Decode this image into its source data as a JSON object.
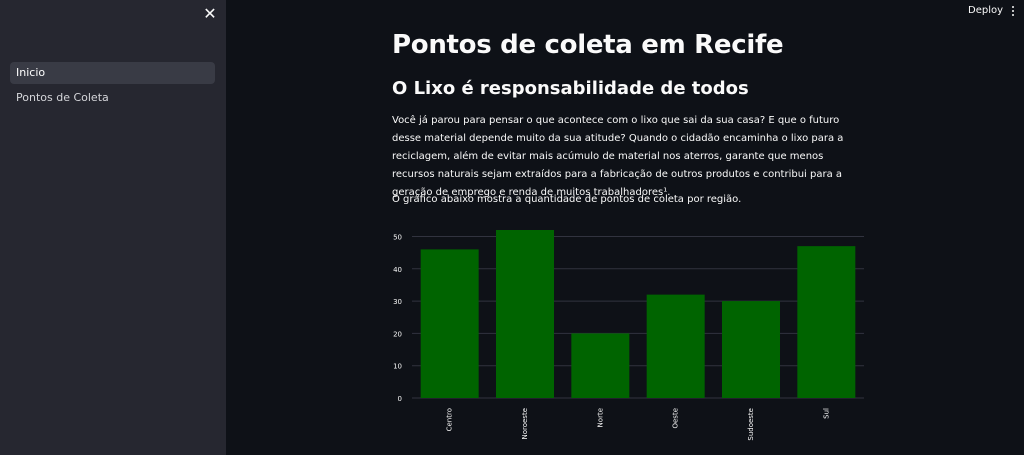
{
  "sidebar": {
    "items": [
      {
        "label": "Inicio",
        "active": true
      },
      {
        "label": "Pontos de Coleta",
        "active": false
      }
    ]
  },
  "header": {
    "deploy_label": "Deploy"
  },
  "main": {
    "title": "Pontos de coleta em Recife",
    "subtitle": "O Lixo é responsabilidade de todos",
    "paragraph": "Você já parou para pensar o que acontece com o lixo que sai da sua casa? E que o futuro desse material depende muito da sua atitude? Quando o cidadão encaminha o lixo para a reciclagem, além de evitar mais acúmulo de material nos aterros, garante que menos recursos naturais sejam extraídos para a fabricação de outros produtos e contribui para a geração de emprego e renda de muitos trabalhadores¹.",
    "chart_intro": "O gráfico abaixo mostra a quantidade de pontos de coleta por região."
  },
  "colors": {
    "background": "#0e1117",
    "sidebar": "#262730",
    "bar": "#006400"
  },
  "chart_data": {
    "type": "bar",
    "categories": [
      "Centro",
      "Noroeste",
      "Norte",
      "Oeste",
      "Sudoeste",
      "Sul"
    ],
    "values": [
      46,
      52,
      20,
      32,
      30,
      47
    ],
    "yticks": [
      0,
      10,
      20,
      30,
      40,
      50
    ],
    "ylim": [
      0,
      52
    ],
    "grid": true
  }
}
